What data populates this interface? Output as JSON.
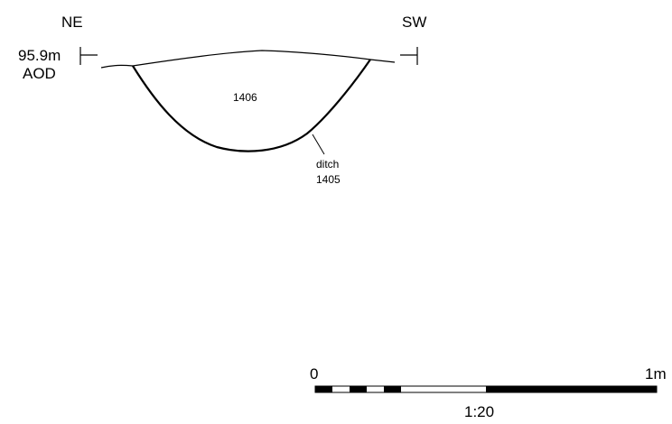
{
  "orientation": {
    "left": "NE",
    "right": "SW"
  },
  "datum": {
    "height": "95.9m",
    "reference": "AOD"
  },
  "features": {
    "fill_label": "1406",
    "cut_type": "ditch",
    "cut_number": "1405"
  },
  "scale_bar": {
    "start_label": "0",
    "end_label": "1m",
    "ratio": "1:20"
  }
}
